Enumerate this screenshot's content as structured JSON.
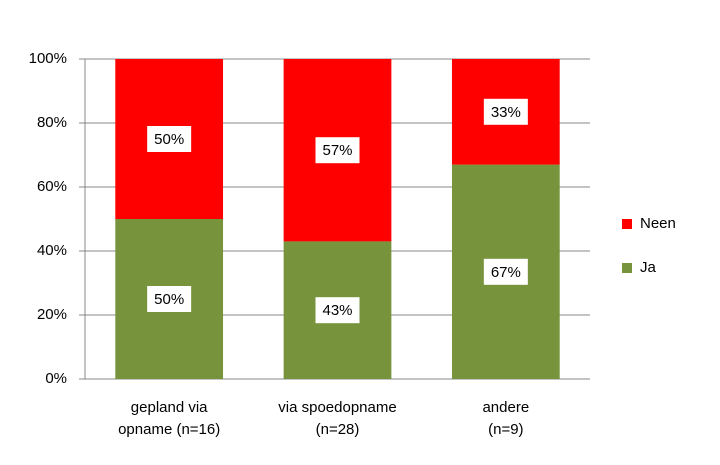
{
  "chart_data": {
    "type": "bar",
    "stacked": true,
    "categories": [
      "gepland via\nopname (n=16)",
      "via spoedopname\n(n=28)",
      "andere\n(n=9)"
    ],
    "series": [
      {
        "name": "Ja",
        "color": "#77933c",
        "values": [
          50,
          43,
          67
        ],
        "value_labels": [
          "50%",
          "43%",
          "67%"
        ]
      },
      {
        "name": "Neen",
        "color": "#ff0000",
        "values": [
          50,
          57,
          33
        ],
        "value_labels": [
          "50%",
          "57%",
          "33%"
        ]
      }
    ],
    "ylim": [
      0,
      100
    ],
    "yticks": [
      {
        "value": 0,
        "label": "0%"
      },
      {
        "value": 20,
        "label": "20%"
      },
      {
        "value": 40,
        "label": "40%"
      },
      {
        "value": 60,
        "label": "60%"
      },
      {
        "value": 80,
        "label": "80%"
      },
      {
        "value": 100,
        "label": "100%"
      }
    ],
    "grid": true,
    "legend": "right"
  }
}
